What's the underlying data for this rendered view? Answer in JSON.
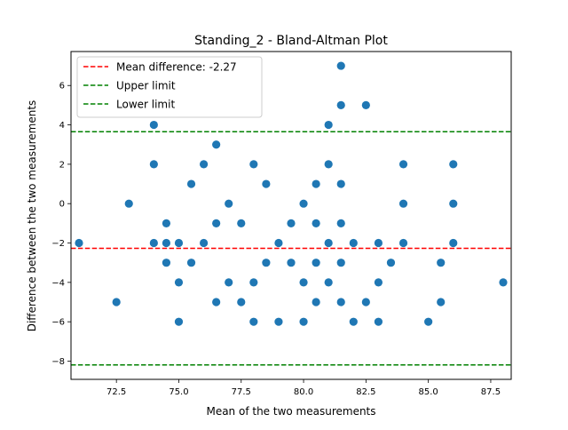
{
  "chart_data": {
    "type": "scatter",
    "title": "Standing_2 - Bland-Altman Plot",
    "xlabel": "Mean of the two measurements",
    "ylabel": "Difference between the two measurements",
    "xlim": [
      70.68,
      88.32
    ],
    "ylim": [
      -8.925,
      7.725
    ],
    "xticks": [
      72.5,
      75.0,
      77.5,
      80.0,
      82.5,
      85.0,
      87.5
    ],
    "xtick_labels": [
      "72.5",
      "75.0",
      "77.5",
      "80.0",
      "82.5",
      "85.0",
      "87.5"
    ],
    "yticks": [
      -8,
      -6,
      -4,
      -2,
      0,
      2,
      4,
      6
    ],
    "ytick_labels": [
      "−8",
      "−6",
      "−4",
      "−2",
      "0",
      "2",
      "4",
      "6"
    ],
    "grid": false,
    "legend_position": "upper-left",
    "marker_color": "#1f77b4",
    "points": [
      [
        71.0,
        -2
      ],
      [
        72.5,
        -5
      ],
      [
        73.0,
        0
      ],
      [
        74.0,
        4
      ],
      [
        74.0,
        2
      ],
      [
        74.0,
        -2
      ],
      [
        74.5,
        -1
      ],
      [
        74.5,
        -3
      ],
      [
        74.5,
        -2
      ],
      [
        75.0,
        -2
      ],
      [
        75.0,
        -4
      ],
      [
        75.0,
        -6
      ],
      [
        75.5,
        1
      ],
      [
        75.5,
        -3
      ],
      [
        76.0,
        2
      ],
      [
        76.0,
        -2
      ],
      [
        76.5,
        3
      ],
      [
        76.5,
        -1
      ],
      [
        76.5,
        -5
      ],
      [
        77.0,
        0
      ],
      [
        77.0,
        -4
      ],
      [
        77.5,
        -1
      ],
      [
        77.5,
        -5
      ],
      [
        78.0,
        2
      ],
      [
        78.0,
        -4
      ],
      [
        78.0,
        -6
      ],
      [
        78.5,
        1
      ],
      [
        78.5,
        -3
      ],
      [
        79.0,
        -2
      ],
      [
        79.0,
        -6
      ],
      [
        79.5,
        -1
      ],
      [
        79.5,
        -3
      ],
      [
        80.0,
        0
      ],
      [
        80.0,
        -4
      ],
      [
        80.0,
        -6
      ],
      [
        80.5,
        1
      ],
      [
        80.5,
        -1
      ],
      [
        80.5,
        -3
      ],
      [
        80.5,
        -5
      ],
      [
        81.0,
        4
      ],
      [
        81.0,
        2
      ],
      [
        81.0,
        -2
      ],
      [
        81.0,
        -4
      ],
      [
        81.5,
        7
      ],
      [
        81.5,
        5
      ],
      [
        81.5,
        1
      ],
      [
        81.5,
        -1
      ],
      [
        81.5,
        -3
      ],
      [
        81.5,
        -5
      ],
      [
        82.0,
        -2
      ],
      [
        82.0,
        -6
      ],
      [
        82.5,
        5
      ],
      [
        82.5,
        -5
      ],
      [
        83.0,
        -2
      ],
      [
        83.0,
        -4
      ],
      [
        83.0,
        -6
      ],
      [
        83.5,
        -3
      ],
      [
        84.0,
        2
      ],
      [
        84.0,
        0
      ],
      [
        84.0,
        -2
      ],
      [
        85.0,
        -6
      ],
      [
        85.5,
        -3
      ],
      [
        85.5,
        -5
      ],
      [
        86.0,
        2
      ],
      [
        86.0,
        0
      ],
      [
        86.0,
        -2
      ],
      [
        88.0,
        -4
      ]
    ],
    "lines": [
      {
        "name": "Mean difference: -2.27",
        "y": -2.27,
        "color": "#ff0000",
        "style": "dashed"
      },
      {
        "name": "Upper limit",
        "y": 3.65,
        "color": "#008000",
        "style": "dashed"
      },
      {
        "name": "Lower limit",
        "y": -8.19,
        "color": "#008000",
        "style": "dashed"
      }
    ]
  }
}
